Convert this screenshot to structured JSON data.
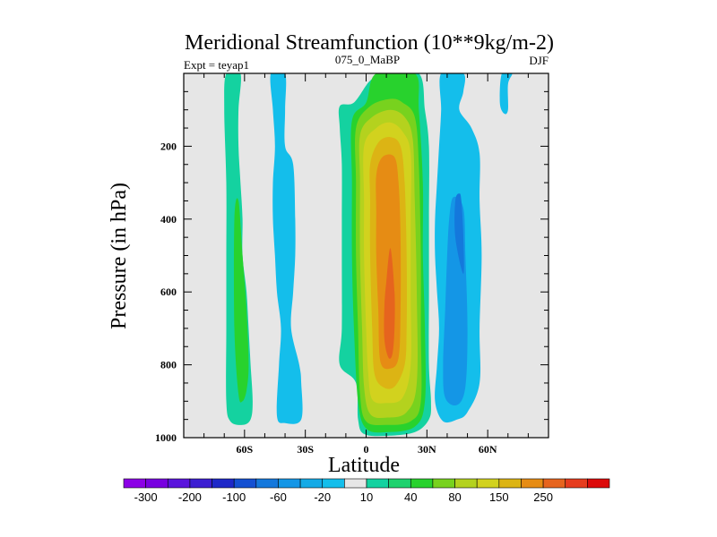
{
  "chart_data": {
    "type": "contour",
    "title": "Meridional Streamfunction (10**9kg/m-2)",
    "left_label": "Expt = teyap1",
    "center_label": "075_0_MaBP",
    "right_label": "DJF",
    "xlabel": "Latitude",
    "ylabel": "Pressure (in hPa)",
    "xlim": [
      -90,
      90
    ],
    "ylim": [
      1000,
      0
    ],
    "x_ticks": [
      {
        "value": -60,
        "label": "60S"
      },
      {
        "value": -30,
        "label": "30S"
      },
      {
        "value": 0,
        "label": "0"
      },
      {
        "value": 30,
        "label": "30N"
      },
      {
        "value": 60,
        "label": "60N"
      }
    ],
    "y_ticks": [
      {
        "value": 200,
        "label": "200"
      },
      {
        "value": 400,
        "label": "400"
      },
      {
        "value": 600,
        "label": "600"
      },
      {
        "value": 800,
        "label": "800"
      },
      {
        "value": 1000,
        "label": "1000"
      }
    ],
    "missing_color": "#e6e6e6",
    "colorbar": {
      "colors": [
        "#8c00e6",
        "#7800e0",
        "#5a14dc",
        "#3c1ed2",
        "#1e28c8",
        "#1450d2",
        "#1478dc",
        "#1496e6",
        "#14aae6",
        "#14beeb",
        "#e6e6e6",
        "#14d2a0",
        "#1ed26e",
        "#28d22d",
        "#78d21e",
        "#b4d21e",
        "#d2d21e",
        "#dcb414",
        "#e68c14",
        "#e6641e",
        "#e63c1e",
        "#dc0a0a"
      ],
      "labels": [
        {
          "boundary": 1,
          "text": "-300"
        },
        {
          "boundary": 3,
          "text": "-200"
        },
        {
          "boundary": 5,
          "text": "-100"
        },
        {
          "boundary": 7,
          "text": "-60"
        },
        {
          "boundary": 9,
          "text": "-20"
        },
        {
          "boundary": 11,
          "text": "10"
        },
        {
          "boundary": 13,
          "text": "40"
        },
        {
          "boundary": 15,
          "text": "80"
        },
        {
          "boundary": 17,
          "text": "150"
        },
        {
          "boundary": 19,
          "text": "250"
        }
      ]
    },
    "regions": [
      {
        "name": "sh-outer-cell",
        "value": 10,
        "color": "#14d2a0",
        "points": [
          [
            -69,
            0
          ],
          [
            -62,
            0
          ],
          [
            -63,
            100
          ],
          [
            -63,
            200
          ],
          [
            -62,
            300
          ],
          [
            -61,
            400
          ],
          [
            -61,
            500
          ],
          [
            -59,
            600
          ],
          [
            -58,
            700
          ],
          [
            -57,
            800
          ],
          [
            -56,
            900
          ],
          [
            -57,
            950
          ],
          [
            -61,
            965
          ],
          [
            -67,
            955
          ],
          [
            -69,
            900
          ],
          [
            -69,
            700
          ],
          [
            -69,
            500
          ],
          [
            -69,
            300
          ],
          [
            -70,
            100
          ]
        ]
      },
      {
        "name": "sh-outer-core",
        "value": 40,
        "color": "#28d22d",
        "points": [
          [
            -65,
            400
          ],
          [
            -63,
            350
          ],
          [
            -61,
            500
          ],
          [
            -59,
            650
          ],
          [
            -58,
            800
          ],
          [
            -59,
            870
          ],
          [
            -61,
            900
          ],
          [
            -63,
            880
          ],
          [
            -65,
            700
          ]
        ]
      },
      {
        "name": "sh-middle-cell",
        "value": -20,
        "color": "#14beeb",
        "points": [
          [
            -47,
            0
          ],
          [
            -40,
            0
          ],
          [
            -40,
            100
          ],
          [
            -40,
            200
          ],
          [
            -36,
            250
          ],
          [
            -35,
            400
          ],
          [
            -35,
            500
          ],
          [
            -36,
            600
          ],
          [
            -37,
            700
          ],
          [
            -33,
            800
          ],
          [
            -32,
            850
          ],
          [
            -32,
            950
          ],
          [
            -40,
            960
          ],
          [
            -44,
            940
          ],
          [
            -43,
            800
          ],
          [
            -42,
            700
          ],
          [
            -44,
            600
          ],
          [
            -45,
            500
          ],
          [
            -46,
            400
          ],
          [
            -46,
            300
          ],
          [
            -45,
            200
          ],
          [
            -46,
            100
          ]
        ]
      },
      {
        "name": "hadley-l1",
        "value": 10,
        "color": "#14d2a0",
        "points": [
          [
            -13,
            90
          ],
          [
            -6,
            80
          ],
          [
            2,
            20
          ],
          [
            10,
            0
          ],
          [
            26,
            0
          ],
          [
            29,
            100
          ],
          [
            31,
            200
          ],
          [
            31,
            400
          ],
          [
            31,
            600
          ],
          [
            31,
            800
          ],
          [
            32,
            900
          ],
          [
            31,
            950
          ],
          [
            24,
            985
          ],
          [
            10,
            995
          ],
          [
            -1,
            990
          ],
          [
            -4,
            950
          ],
          [
            -5,
            850
          ],
          [
            -13,
            800
          ],
          [
            -12,
            700
          ],
          [
            -12,
            500
          ],
          [
            -12,
            400
          ],
          [
            -12,
            250
          ],
          [
            -13,
            150
          ]
        ]
      },
      {
        "name": "hadley-l2",
        "value": 40,
        "color": "#28d22d",
        "points": [
          [
            -7,
            130
          ],
          [
            0,
            80
          ],
          [
            5,
            0
          ],
          [
            24,
            0
          ],
          [
            26,
            100
          ],
          [
            28,
            300
          ],
          [
            28,
            500
          ],
          [
            29,
            700
          ],
          [
            29,
            900
          ],
          [
            24,
            970
          ],
          [
            10,
            985
          ],
          [
            0,
            975
          ],
          [
            -4,
            900
          ],
          [
            -6,
            700
          ],
          [
            -7,
            500
          ],
          [
            -7,
            300
          ]
        ]
      },
      {
        "name": "hadley-l3",
        "value": 80,
        "color": "#78d21e",
        "points": [
          [
            -5,
            150
          ],
          [
            2,
            90
          ],
          [
            12,
            70
          ],
          [
            18,
            80
          ],
          [
            24,
            120
          ],
          [
            26,
            250
          ],
          [
            27,
            500
          ],
          [
            27,
            700
          ],
          [
            27,
            900
          ],
          [
            22,
            955
          ],
          [
            10,
            965
          ],
          [
            0,
            955
          ],
          [
            -3,
            880
          ],
          [
            -4,
            700
          ],
          [
            -5,
            500
          ],
          [
            -5,
            300
          ]
        ]
      },
      {
        "name": "hadley-l4",
        "value": 100,
        "color": "#b4d21e",
        "points": [
          [
            -3,
            170
          ],
          [
            3,
            120
          ],
          [
            12,
            100
          ],
          [
            19,
            120
          ],
          [
            23,
            180
          ],
          [
            24,
            350
          ],
          [
            25,
            600
          ],
          [
            25,
            850
          ],
          [
            20,
            930
          ],
          [
            10,
            945
          ],
          [
            2,
            935
          ],
          [
            -1,
            860
          ],
          [
            -2,
            700
          ],
          [
            -3,
            500
          ],
          [
            -3,
            300
          ]
        ]
      },
      {
        "name": "hadley-l5",
        "value": 120,
        "color": "#d2d21e",
        "points": [
          [
            -1,
            200
          ],
          [
            5,
            150
          ],
          [
            12,
            135
          ],
          [
            18,
            160
          ],
          [
            22,
            220
          ],
          [
            22,
            400
          ],
          [
            22,
            600
          ],
          [
            22,
            800
          ],
          [
            18,
            890
          ],
          [
            10,
            905
          ],
          [
            3,
            895
          ],
          [
            1,
            820
          ],
          [
            0,
            700
          ],
          [
            -1,
            500
          ],
          [
            -1,
            350
          ]
        ]
      },
      {
        "name": "hadley-l6",
        "value": 150,
        "color": "#dcb414",
        "points": [
          [
            2,
            250
          ],
          [
            6,
            190
          ],
          [
            12,
            175
          ],
          [
            17,
            200
          ],
          [
            19,
            300
          ],
          [
            20,
            500
          ],
          [
            20,
            700
          ],
          [
            19,
            800
          ],
          [
            14,
            860
          ],
          [
            8,
            860
          ],
          [
            4,
            820
          ],
          [
            3,
            700
          ],
          [
            2,
            500
          ],
          [
            2,
            350
          ]
        ]
      },
      {
        "name": "hadley-l7",
        "value": 200,
        "color": "#e68c14",
        "points": [
          [
            5,
            280
          ],
          [
            8,
            230
          ],
          [
            14,
            230
          ],
          [
            16,
            300
          ],
          [
            17,
            450
          ],
          [
            17,
            650
          ],
          [
            16,
            780
          ],
          [
            12,
            810
          ],
          [
            7,
            790
          ],
          [
            6,
            650
          ],
          [
            5,
            500
          ],
          [
            5,
            380
          ]
        ]
      },
      {
        "name": "hadley-core",
        "value": 250,
        "color": "#e6641e",
        "points": [
          [
            10,
            570
          ],
          [
            12,
            480
          ],
          [
            14,
            600
          ],
          [
            14,
            700
          ],
          [
            13,
            770
          ],
          [
            11,
            780
          ],
          [
            9,
            730
          ],
          [
            9,
            640
          ]
        ]
      },
      {
        "name": "nh-cell",
        "value": -20,
        "color": "#14beeb",
        "points": [
          [
            37,
            0
          ],
          [
            48,
            0
          ],
          [
            48,
            50
          ],
          [
            46,
            100
          ],
          [
            52,
            150
          ],
          [
            56,
            220
          ],
          [
            56,
            350
          ],
          [
            57,
            500
          ],
          [
            56,
            700
          ],
          [
            56,
            850
          ],
          [
            50,
            930
          ],
          [
            45,
            950
          ],
          [
            38,
            955
          ],
          [
            34,
            900
          ],
          [
            35,
            800
          ],
          [
            36,
            700
          ],
          [
            35,
            600
          ],
          [
            34,
            500
          ],
          [
            34,
            400
          ],
          [
            35,
            300
          ],
          [
            36,
            200
          ],
          [
            37,
            100
          ]
        ]
      },
      {
        "name": "nh-cell-core",
        "value": -60,
        "color": "#1496e6",
        "points": [
          [
            43,
            340
          ],
          [
            48,
            370
          ],
          [
            49,
            500
          ],
          [
            50,
            700
          ],
          [
            49,
            860
          ],
          [
            45,
            910
          ],
          [
            39,
            890
          ],
          [
            38,
            800
          ],
          [
            39,
            650
          ],
          [
            40,
            500
          ],
          [
            41,
            400
          ]
        ]
      },
      {
        "name": "nh-cell-mid",
        "value": -100,
        "color": "#1478dc",
        "points": [
          [
            46,
            330
          ],
          [
            47,
            350
          ],
          [
            48,
            450
          ],
          [
            48,
            550
          ],
          [
            44,
            450
          ],
          [
            44,
            350
          ]
        ]
      },
      {
        "name": "nh-polar-tongue",
        "value": -20,
        "color": "#14beeb",
        "points": [
          [
            67,
            0
          ],
          [
            72,
            0
          ],
          [
            70,
            30
          ],
          [
            70,
            100
          ],
          [
            68,
            110
          ],
          [
            66,
            80
          ]
        ]
      }
    ]
  }
}
